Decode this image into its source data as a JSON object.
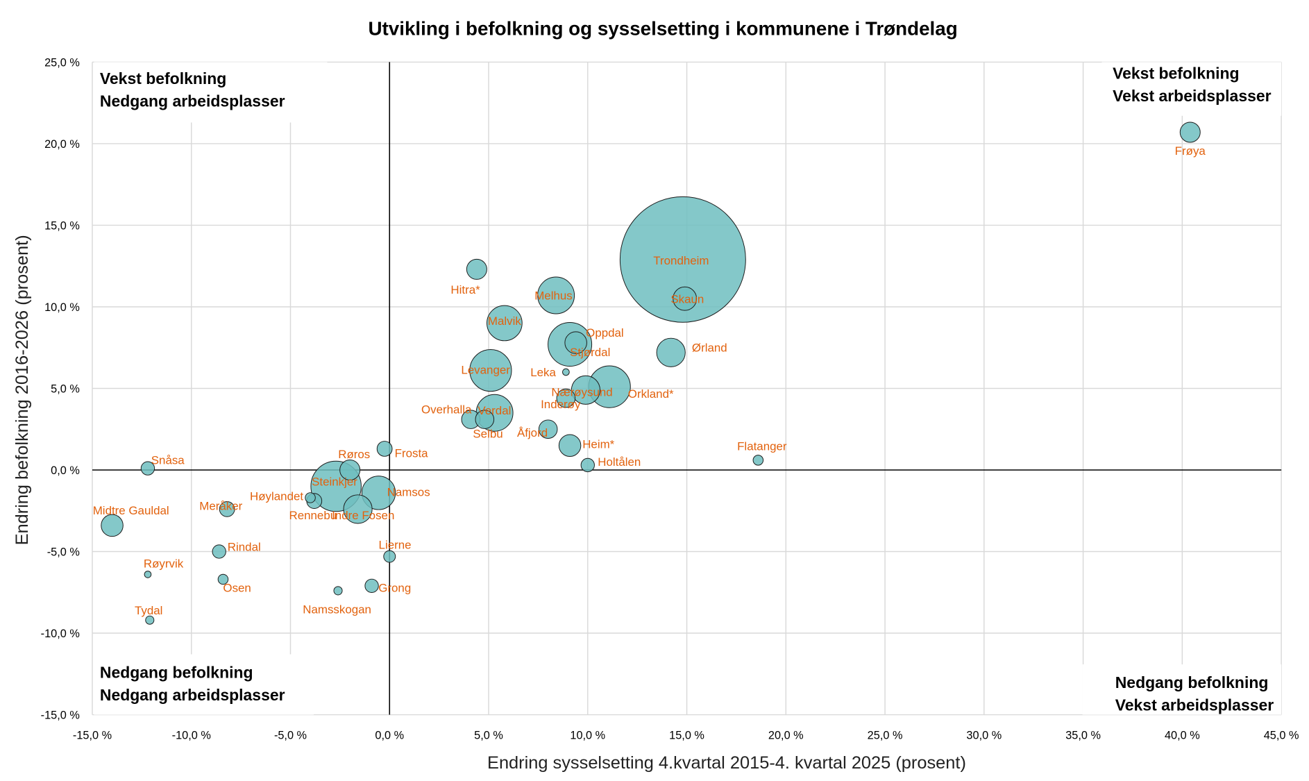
{
  "chart_data": {
    "type": "bubble",
    "title": "Utvikling i befolkning og sysselsetting i kommunene i Trøndelag",
    "xlabel": "Endring sysselsetting 4.kvartal 2015-4. kvartal 2025 (prosent)",
    "ylabel": "Endring befolkning 2016-2026 (prosent)",
    "xlim": [
      -15,
      45
    ],
    "ylim": [
      -15,
      25
    ],
    "xticks": [
      "-15,0 %",
      "-10,0 %",
      "-5,0 %",
      "0,0 %",
      "5,0 %",
      "10,0 %",
      "15,0 %",
      "20,0 %",
      "25,0 %",
      "30,0 %",
      "35,0 %",
      "40,0 %",
      "45,0 %"
    ],
    "yticks": [
      "25,0 %",
      "20,0 %",
      "15,0 %",
      "10,0 %",
      "5,0 %",
      "0,0 %",
      "-5,0 %",
      "-10,0 %",
      "-15,0 %"
    ],
    "grid": true,
    "bubble_color": "#6FBEC0",
    "label_color": "#E2620E",
    "quadrants": {
      "top_left": [
        "Vekst befolkning",
        "Nedgang arbeidsplasser"
      ],
      "top_right": [
        "Vekst befolkning",
        "Vekst arbeidsplasser"
      ],
      "bottom_left": [
        "Nedgang befolkning",
        "Nedgang arbeidsplasser"
      ],
      "bottom_right": [
        "Nedgang befolkning",
        "Vekst arbeidsplasser"
      ]
    },
    "points": [
      {
        "name": "Trondheim",
        "x": 14.8,
        "y": 12.9,
        "size": 5600
      },
      {
        "name": "Steinkjer",
        "x": -2.7,
        "y": -1.0,
        "size": 900
      },
      {
        "name": "Stjørdal",
        "x": 9.1,
        "y": 7.7,
        "size": 680
      },
      {
        "name": "Levanger",
        "x": 5.1,
        "y": 6.1,
        "size": 620
      },
      {
        "name": "Orkland*",
        "x": 11.1,
        "y": 5.1,
        "size": 620
      },
      {
        "name": "Melhus",
        "x": 8.4,
        "y": 10.7,
        "size": 480
      },
      {
        "name": "Verdal",
        "x": 5.3,
        "y": 3.5,
        "size": 480
      },
      {
        "name": "Malvik",
        "x": 5.8,
        "y": 9.0,
        "size": 440
      },
      {
        "name": "Namsos",
        "x": -0.55,
        "y": -1.4,
        "size": 400
      },
      {
        "name": "Ørland",
        "x": 14.2,
        "y": 7.2,
        "size": 290
      },
      {
        "name": "Nærøysund",
        "x": 9.9,
        "y": 4.9,
        "size": 290
      },
      {
        "name": "Indre Fosen",
        "x": -1.6,
        "y": -2.4,
        "size": 290
      },
      {
        "name": "Skaun",
        "x": 14.9,
        "y": 10.5,
        "size": 196
      },
      {
        "name": "Oppdal",
        "x": 9.4,
        "y": 7.8,
        "size": 170
      },
      {
        "name": "Heim*",
        "x": 9.1,
        "y": 1.5,
        "size": 170
      },
      {
        "name": "Midtre Gauldal",
        "x": -14.0,
        "y": -3.4,
        "size": 170
      },
      {
        "name": "Frøya",
        "x": 40.4,
        "y": 20.7,
        "size": 144
      },
      {
        "name": "Hitra*",
        "x": 4.4,
        "y": 12.3,
        "size": 144
      },
      {
        "name": "Røros",
        "x": -2.0,
        "y": 0.0,
        "size": 144
      },
      {
        "name": "Inderøy",
        "x": 8.9,
        "y": 4.4,
        "size": 121
      },
      {
        "name": "Overhalla",
        "x": 4.1,
        "y": 3.1,
        "size": 121
      },
      {
        "name": "Selbu",
        "x": 4.8,
        "y": 3.1,
        "size": 121
      },
      {
        "name": "Åfjord",
        "x": 8.0,
        "y": 2.5,
        "size": 121
      },
      {
        "name": "Frosta",
        "x": -0.25,
        "y": 1.3,
        "size": 81
      },
      {
        "name": "Rennebu",
        "x": -3.8,
        "y": -1.9,
        "size": 81
      },
      {
        "name": "Meråker",
        "x": -8.2,
        "y": -2.4,
        "size": 81
      },
      {
        "name": "Holtålen",
        "x": 10.0,
        "y": 0.3,
        "size": 64
      },
      {
        "name": "Snåsa",
        "x": -12.2,
        "y": 0.1,
        "size": 64
      },
      {
        "name": "Rindal",
        "x": -8.6,
        "y": -5.0,
        "size": 64
      },
      {
        "name": "Grong",
        "x": -0.9,
        "y": -7.1,
        "size": 64
      },
      {
        "name": "Lierne",
        "x": 0.0,
        "y": -5.3,
        "size": 49
      },
      {
        "name": "Flatanger",
        "x": 18.6,
        "y": 0.6,
        "size": 36
      },
      {
        "name": "Høylandet",
        "x": -4.0,
        "y": -1.7,
        "size": 36
      },
      {
        "name": "Osen",
        "x": -8.4,
        "y": -6.7,
        "size": 36
      },
      {
        "name": "Namsskogan",
        "x": -2.6,
        "y": -7.4,
        "size": 25
      },
      {
        "name": "Tydal",
        "x": -12.1,
        "y": -9.2,
        "size": 25
      },
      {
        "name": "Leka",
        "x": 8.9,
        "y": 6.0,
        "size": 16
      },
      {
        "name": "Røyrvik",
        "x": -12.2,
        "y": -6.4,
        "size": 16
      }
    ]
  }
}
